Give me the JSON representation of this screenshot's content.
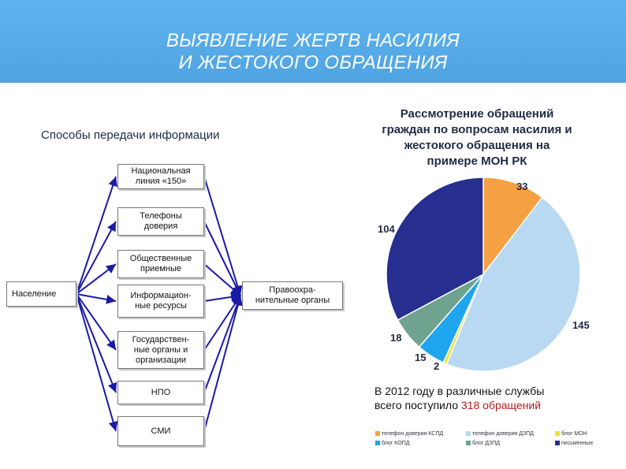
{
  "header": {
    "title_line1": "ВЫЯВЛЕНИЕ  ЖЕРТВ НАСИЛИЯ",
    "title_line2": "И ЖЕСТОКОГО  ОБРАЩЕНИЯ",
    "band_color": "#5fb3ee"
  },
  "diagram": {
    "subtitle": "Способы передачи информации",
    "source": "Население",
    "channels": [
      {
        "line1": "Национальная",
        "line2": "линия «150»",
        "line3": ""
      },
      {
        "line1": "Телефоны",
        "line2": "доверия",
        "line3": ""
      },
      {
        "line1": "Общественные",
        "line2": "приемные",
        "line3": ""
      },
      {
        "line1": "Информацион-",
        "line2": "ные ресурсы",
        "line3": ""
      },
      {
        "line1": "Государствен-",
        "line2": "ные органы и",
        "line3": "организации"
      },
      {
        "line1": "НПО",
        "line2": "",
        "line3": ""
      },
      {
        "line1": "СМИ",
        "line2": "",
        "line3": ""
      }
    ],
    "target_line1": "Правоохра-",
    "target_line2": "нительные органы",
    "arrow_color": "#1a1aa6"
  },
  "right_panel": {
    "title_line1": "Рассмотрение обращений",
    "title_line2": "граждан по вопросам насилия и",
    "title_line3": "жестокого обращения на",
    "title_line4": "примере МОН РК",
    "summary_prefix": "В 2012 году в различные службы",
    "summary_line2": "всего поступило ",
    "summary_highlight": "318 обращений"
  },
  "chart_data": {
    "type": "pie",
    "title": "Рассмотрение обращений граждан по вопросам насилия и жестокого обращения на примере МОН РК",
    "slices": [
      {
        "name": "телефон доверия КСПД",
        "value": 33,
        "color": "#f5a043"
      },
      {
        "name": "телефон доверия ДЗПД",
        "value": 145,
        "color": "#b9d8f2"
      },
      {
        "name": "блог МОН",
        "value": 2,
        "color": "#f2e23a"
      },
      {
        "name": "блог КОПД",
        "value": 15,
        "color": "#1fa6ee"
      },
      {
        "name": "блог ДЗПД",
        "value": 18,
        "color": "#6fa38f"
      },
      {
        "name": "письменные",
        "value": 104,
        "color": "#262e8f"
      }
    ],
    "legend_placement": "bottom"
  }
}
